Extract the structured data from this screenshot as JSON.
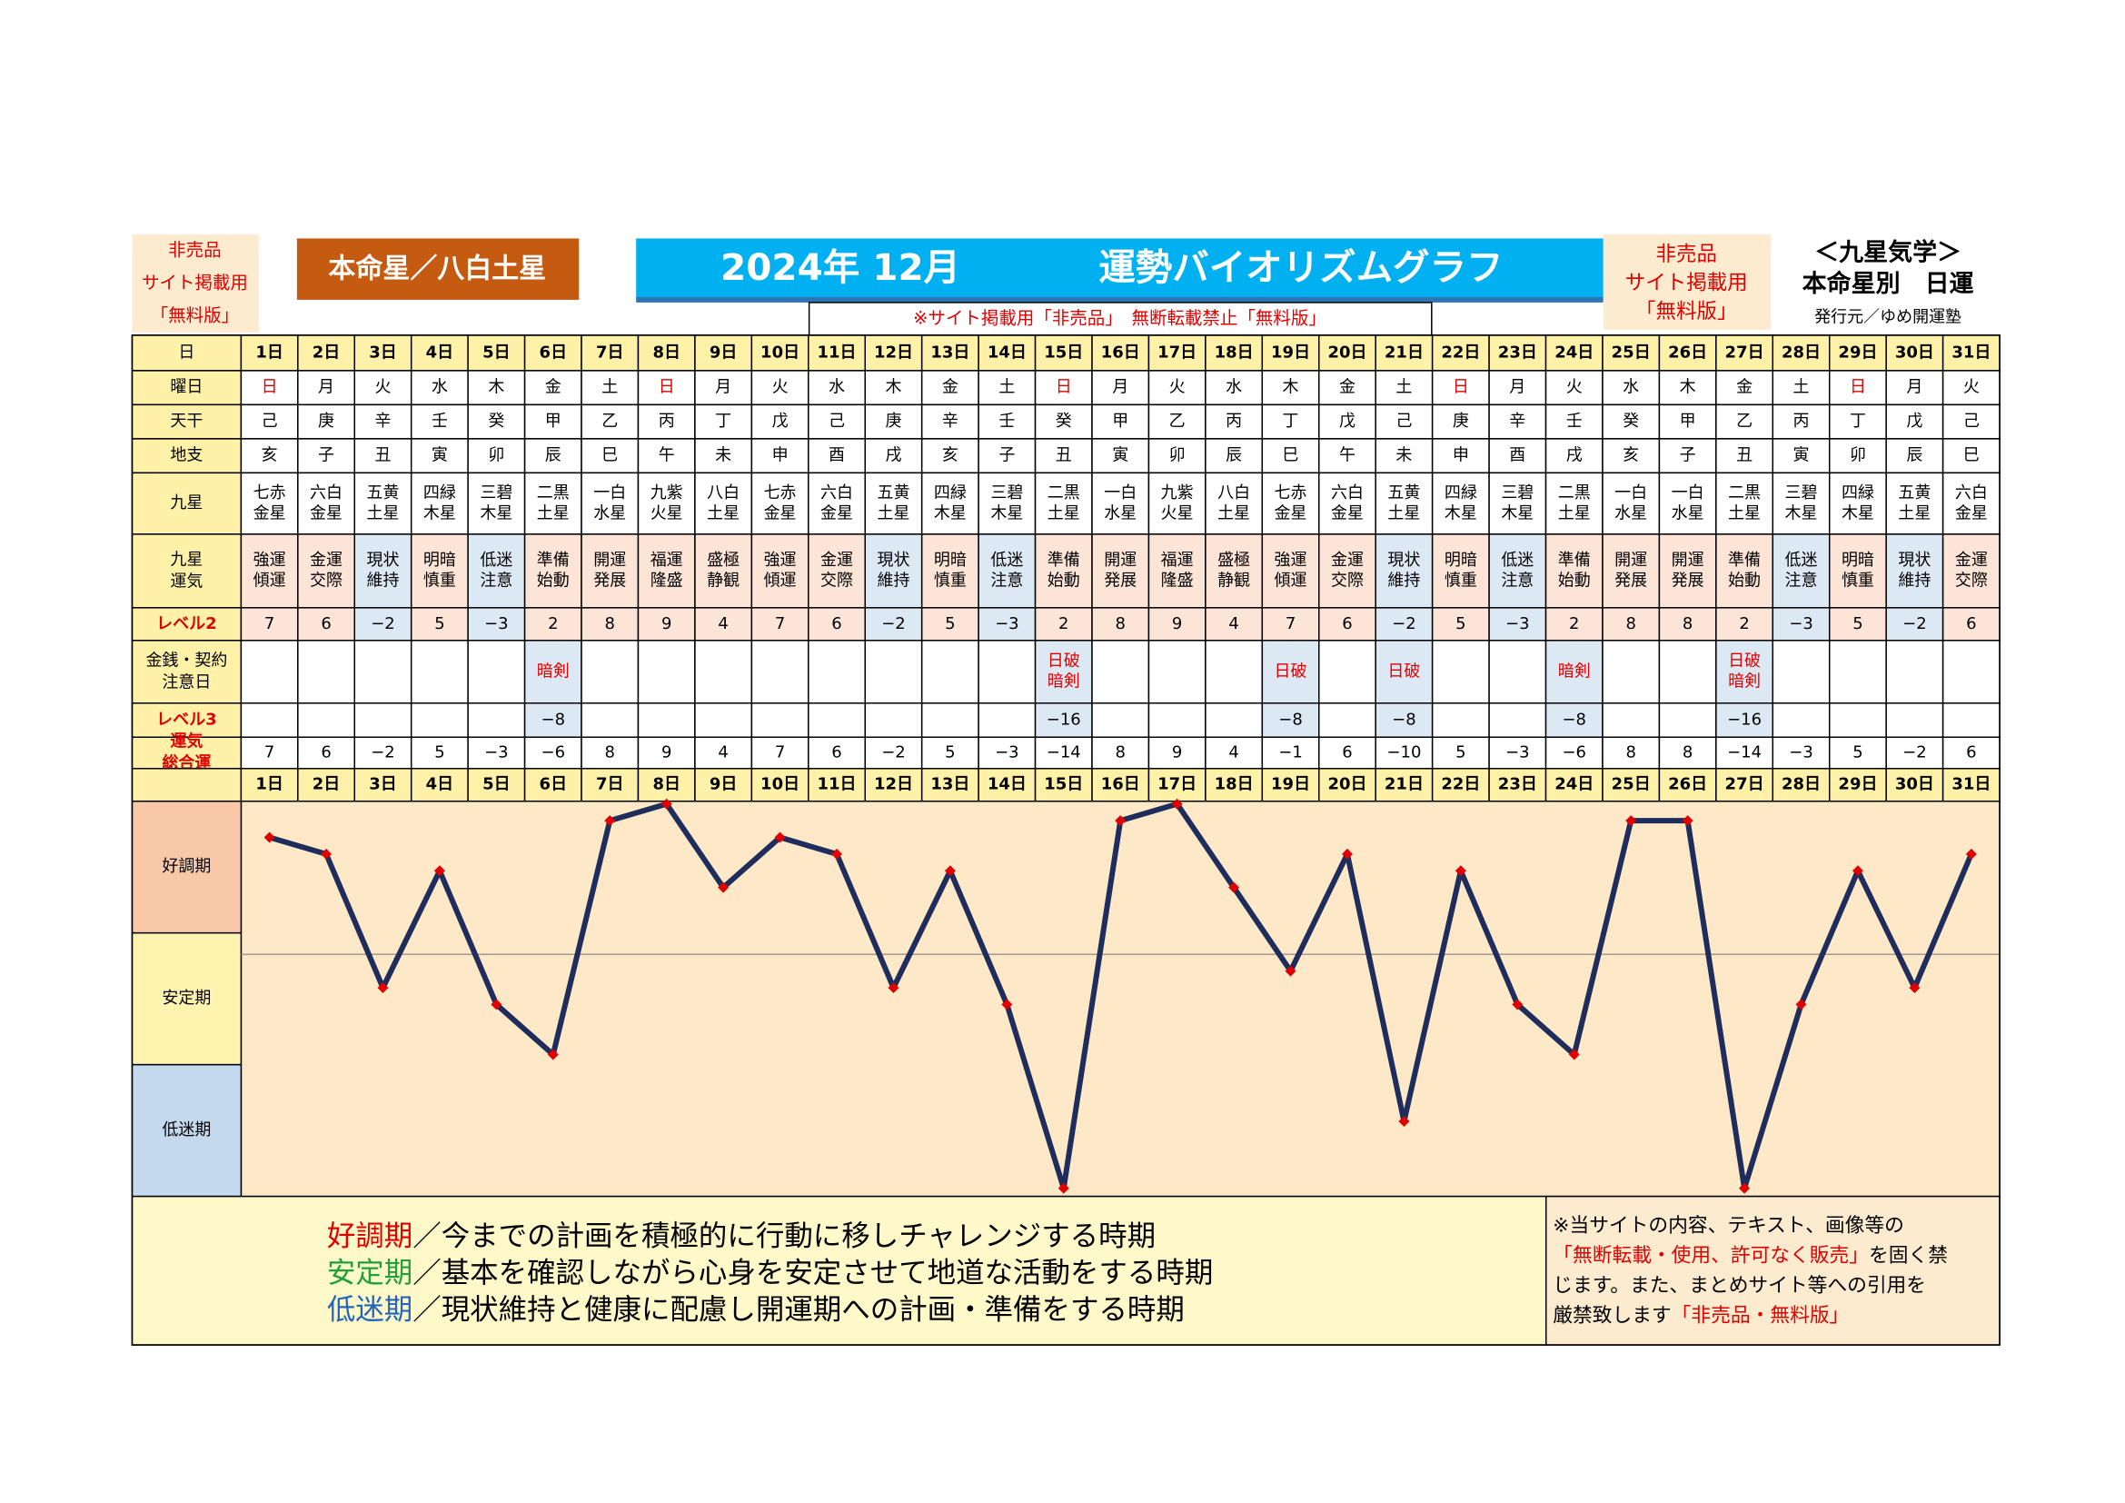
{
  "header": {
    "notice_left": [
      "非売品",
      "サイト掲載用",
      "「無料版」"
    ],
    "honmei": "本命星／八白土星",
    "title_date": "2024年 12月",
    "title_main": "運勢バイオリズムグラフ",
    "notice_center": "※サイト掲載用「非売品」　無断転載禁止「無料版」",
    "notice_right": [
      "非売品",
      "サイト掲載用",
      "「無料版」"
    ],
    "side": [
      "＜九星気学＞",
      "本命星別　日運",
      "発行元／ゆめ開運塾"
    ]
  },
  "table": {
    "row_labels": [
      {
        "lines": [
          "日"
        ]
      },
      {
        "lines": [
          "曜日"
        ]
      },
      {
        "lines": [
          "天干"
        ]
      },
      {
        "lines": [
          "地支"
        ]
      },
      {
        "lines": [
          "九星"
        ]
      },
      {
        "lines": [
          "九星",
          "運気"
        ]
      },
      {
        "lines": [
          "レベル2"
        ],
        "color": "#e00000"
      },
      {
        "lines": [
          "金銭・契約",
          "注意日"
        ]
      },
      {
        "lines": [
          "レベル3"
        ],
        "color": "#e00000"
      },
      {
        "lines": [
          "運気",
          "総合運"
        ],
        "color": "#e00000"
      }
    ],
    "days": [
      "1日",
      "2日",
      "3日",
      "4日",
      "5日",
      "6日",
      "7日",
      "8日",
      "9日",
      "10日",
      "11日",
      "12日",
      "13日",
      "14日",
      "15日",
      "16日",
      "17日",
      "18日",
      "19日",
      "20日",
      "21日",
      "22日",
      "23日",
      "24日",
      "25日",
      "26日",
      "27日",
      "28日",
      "29日",
      "30日",
      "31日"
    ],
    "weekdays": [
      "日",
      "月",
      "火",
      "水",
      "木",
      "金",
      "土",
      "日",
      "月",
      "火",
      "水",
      "木",
      "金",
      "土",
      "日",
      "月",
      "火",
      "水",
      "木",
      "金",
      "土",
      "日",
      "月",
      "火",
      "水",
      "木",
      "金",
      "土",
      "日",
      "月",
      "火"
    ],
    "weekday_colors": [
      "#e00000",
      "#000",
      "#000",
      "#000",
      "#000",
      "#000",
      "#000",
      "#e00000",
      "#000",
      "#000",
      "#000",
      "#000",
      "#000",
      "#000",
      "#e00000",
      "#000",
      "#000",
      "#000",
      "#000",
      "#000",
      "#000",
      "#e00000",
      "#000",
      "#000",
      "#000",
      "#000",
      "#000",
      "#000",
      "#e00000",
      "#000",
      "#000"
    ],
    "stems": [
      "己",
      "庚",
      "辛",
      "壬",
      "癸",
      "甲",
      "乙",
      "丙",
      "丁",
      "戊",
      "己",
      "庚",
      "辛",
      "壬",
      "癸",
      "甲",
      "乙",
      "丙",
      "丁",
      "戊",
      "己",
      "庚",
      "辛",
      "壬",
      "癸",
      "甲",
      "乙",
      "丙",
      "丁",
      "戊",
      "己"
    ],
    "branches": [
      "亥",
      "子",
      "丑",
      "寅",
      "卯",
      "辰",
      "巳",
      "午",
      "未",
      "申",
      "酉",
      "戌",
      "亥",
      "子",
      "丑",
      "寅",
      "卯",
      "辰",
      "巳",
      "午",
      "未",
      "申",
      "酉",
      "戌",
      "亥",
      "子",
      "丑",
      "寅",
      "卯",
      "辰",
      "巳"
    ],
    "stars": [
      [
        "七赤",
        "金星"
      ],
      [
        "六白",
        "金星"
      ],
      [
        "五黄",
        "土星"
      ],
      [
        "四緑",
        "木星"
      ],
      [
        "三碧",
        "木星"
      ],
      [
        "二黒",
        "土星"
      ],
      [
        "一白",
        "水星"
      ],
      [
        "九紫",
        "火星"
      ],
      [
        "八白",
        "土星"
      ],
      [
        "七赤",
        "金星"
      ],
      [
        "六白",
        "金星"
      ],
      [
        "五黄",
        "土星"
      ],
      [
        "四緑",
        "木星"
      ],
      [
        "三碧",
        "木星"
      ],
      [
        "二黒",
        "土星"
      ],
      [
        "一白",
        "水星"
      ],
      [
        "九紫",
        "火星"
      ],
      [
        "八白",
        "土星"
      ],
      [
        "七赤",
        "金星"
      ],
      [
        "六白",
        "金星"
      ],
      [
        "五黄",
        "土星"
      ],
      [
        "四緑",
        "木星"
      ],
      [
        "三碧",
        "木星"
      ],
      [
        "二黒",
        "土星"
      ],
      [
        "一白",
        "水星"
      ],
      [
        "一白",
        "水星"
      ],
      [
        "二黒",
        "土星"
      ],
      [
        "三碧",
        "木星"
      ],
      [
        "四緑",
        "木星"
      ],
      [
        "五黄",
        "土星"
      ],
      [
        "六白",
        "金星"
      ]
    ],
    "fortune": [
      [
        "強運",
        "傾運"
      ],
      [
        "金運",
        "交際"
      ],
      [
        "現状",
        "維持"
      ],
      [
        "明暗",
        "慎重"
      ],
      [
        "低迷",
        "注意"
      ],
      [
        "準備",
        "始動"
      ],
      [
        "開運",
        "発展"
      ],
      [
        "福運",
        "隆盛"
      ],
      [
        "盛極",
        "静観"
      ],
      [
        "強運",
        "傾運"
      ],
      [
        "金運",
        "交際"
      ],
      [
        "現状",
        "維持"
      ],
      [
        "明暗",
        "慎重"
      ],
      [
        "低迷",
        "注意"
      ],
      [
        "準備",
        "始動"
      ],
      [
        "開運",
        "発展"
      ],
      [
        "福運",
        "隆盛"
      ],
      [
        "盛極",
        "静観"
      ],
      [
        "強運",
        "傾運"
      ],
      [
        "金運",
        "交際"
      ],
      [
        "現状",
        "維持"
      ],
      [
        "明暗",
        "慎重"
      ],
      [
        "低迷",
        "注意"
      ],
      [
        "準備",
        "始動"
      ],
      [
        "開運",
        "発展"
      ],
      [
        "開運",
        "発展"
      ],
      [
        "準備",
        "始動"
      ],
      [
        "低迷",
        "注意"
      ],
      [
        "明暗",
        "慎重"
      ],
      [
        "現状",
        "維持"
      ],
      [
        "金運",
        "交際"
      ]
    ],
    "level2": [
      "7",
      "6",
      "−2",
      "5",
      "−3",
      "2",
      "8",
      "9",
      "4",
      "7",
      "6",
      "−2",
      "5",
      "−3",
      "2",
      "8",
      "9",
      "4",
      "7",
      "6",
      "−2",
      "5",
      "−3",
      "2",
      "8",
      "8",
      "2",
      "−3",
      "5",
      "−2",
      "6"
    ],
    "caution": [
      null,
      null,
      null,
      null,
      null,
      [
        "暗剣"
      ],
      null,
      null,
      null,
      null,
      null,
      null,
      null,
      null,
      [
        "日破",
        "暗剣"
      ],
      null,
      null,
      null,
      [
        "日破"
      ],
      null,
      [
        "日破"
      ],
      null,
      null,
      [
        "暗剣"
      ],
      null,
      null,
      [
        "日破",
        "暗剣"
      ],
      null,
      null,
      null,
      null
    ],
    "level3": [
      null,
      null,
      null,
      null,
      null,
      "−8",
      null,
      null,
      null,
      null,
      null,
      null,
      null,
      null,
      "−16",
      null,
      null,
      null,
      "−8",
      null,
      "−8",
      null,
      null,
      "−8",
      null,
      null,
      "−16",
      null,
      null,
      null,
      null
    ],
    "total": [
      "7",
      "6",
      "−2",
      "5",
      "−3",
      "−6",
      "8",
      "9",
      "4",
      "7",
      "6",
      "−2",
      "5",
      "−3",
      "−14",
      "8",
      "9",
      "4",
      "−1",
      "6",
      "−10",
      "5",
      "−3",
      "−6",
      "8",
      "8",
      "−14",
      "−3",
      "5",
      "−2",
      "6"
    ]
  },
  "chart_data": {
    "type": "line",
    "values": [
      7,
      6,
      -2,
      5,
      -3,
      -6,
      8,
      9,
      4,
      7,
      6,
      -2,
      5,
      -3,
      -14,
      8,
      9,
      4,
      -1,
      6,
      -10,
      5,
      -3,
      -6,
      8,
      8,
      -14,
      -3,
      5,
      -2,
      6
    ],
    "ylim": [
      -14,
      9
    ],
    "hline": 0,
    "color": "#1f2d5c",
    "marker_color": "#e00000",
    "bands": [
      {
        "label": "好調期",
        "color": "#f8c8a8"
      },
      {
        "label": "安定期",
        "color": "#fff3b0"
      },
      {
        "label": "低迷期",
        "color": "#c5d9ee"
      }
    ]
  },
  "legend": [
    {
      "term": "好調期",
      "color": "#e00000",
      "text": "／今までの計画を積極的に行動に移しチャレンジする時期"
    },
    {
      "term": "安定期",
      "color": "#1fa03a",
      "text": "／基本を確認しながら心身を安定させて地道な活動をする時期"
    },
    {
      "term": "低迷期",
      "color": "#2266bb",
      "text": "／現状維持と健康に配慮し開運期への計画・準備をする時期"
    }
  ],
  "notice_bottom": [
    [
      {
        "text": "※当サイトの内容、テキスト、画像等の",
        "color": "#000"
      }
    ],
    [
      {
        "text": "「無断転載・使用、許可なく販売」",
        "color": "#e00000"
      },
      {
        "text": "を固く禁",
        "color": "#000"
      }
    ],
    [
      {
        "text": "じます。また、まとめサイト等への引用を",
        "color": "#000"
      }
    ],
    [
      {
        "text": "厳禁致します",
        "color": "#000"
      },
      {
        "text": "「非売品・無料版」",
        "color": "#e00000"
      }
    ]
  ]
}
